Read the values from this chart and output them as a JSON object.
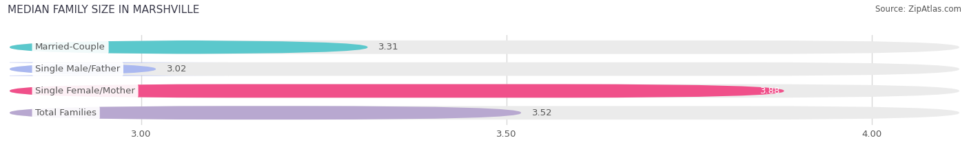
{
  "title": "MEDIAN FAMILY SIZE IN MARSHVILLE",
  "source": "Source: ZipAtlas.com",
  "categories": [
    "Married-Couple",
    "Single Male/Father",
    "Single Female/Mother",
    "Total Families"
  ],
  "values": [
    3.31,
    3.02,
    3.88,
    3.52
  ],
  "bar_colors": [
    "#5bc8cc",
    "#aab8f0",
    "#f0508a",
    "#b8a8d0"
  ],
  "xlim_min": 2.82,
  "xlim_max": 4.12,
  "xticks": [
    3.0,
    3.5,
    4.0
  ],
  "xtick_labels": [
    "3.00",
    "3.50",
    "4.00"
  ],
  "bar_height": 0.62,
  "bar_gap": 1.0,
  "label_fontsize": 9.5,
  "value_fontsize": 9.5,
  "title_fontsize": 11,
  "source_fontsize": 8.5,
  "background_color": "#ffffff",
  "bar_bg_color": "#ebebeb",
  "grid_color": "#d8d8d8",
  "text_color": "#555555",
  "value_inside_bar_index": 2,
  "inside_value_color": "#ffffff"
}
